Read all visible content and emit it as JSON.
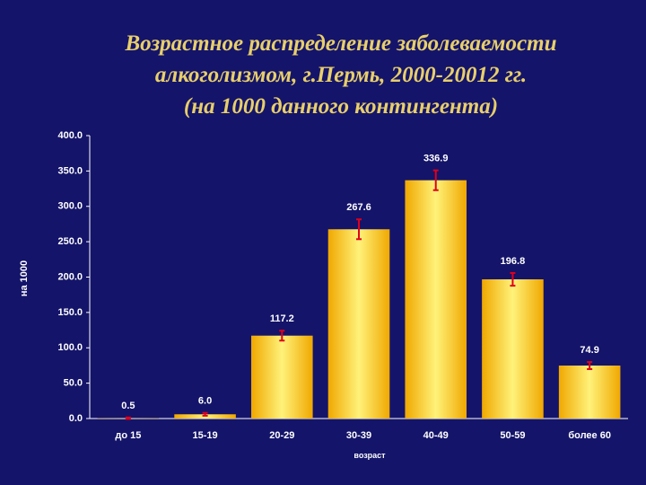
{
  "chart_data": {
    "type": "bar",
    "title_lines": [
      "Возрастное распределение заболеваемости",
      "алкоголизмом, г.Пермь, 2000-20012 гг.",
      "(на 1000 данного контингента)"
    ],
    "y_label": "на 1000",
    "x_label": "возраст",
    "categories": [
      "до 15",
      "15-19",
      "20-29",
      "30-39",
      "40-49",
      "50-59",
      "более 60"
    ],
    "values": [
      0.5,
      6,
      117.2,
      267.6,
      336.9,
      196.8,
      74.9
    ],
    "value_labels": [
      "0.5",
      "6.0",
      "117.2",
      "267.6",
      "336.9",
      "196.8",
      "74.9"
    ],
    "errors": [
      1,
      2,
      7,
      14,
      14,
      9,
      5
    ],
    "color": "#ffcc00",
    "error_color": "#e0001a",
    "ylim": [
      0,
      400
    ],
    "yticks": [
      {
        "value": 0,
        "label": "0.0"
      },
      {
        "value": 50,
        "label": "50.0"
      },
      {
        "value": 100,
        "label": "100.0"
      },
      {
        "value": 150,
        "label": "150.0"
      },
      {
        "value": 200,
        "label": "200.0"
      },
      {
        "value": 250,
        "label": "250.0"
      },
      {
        "value": 300,
        "label": "300.0"
      },
      {
        "value": 350,
        "label": "350.0"
      },
      {
        "value": 400,
        "label": "400.0"
      }
    ]
  }
}
